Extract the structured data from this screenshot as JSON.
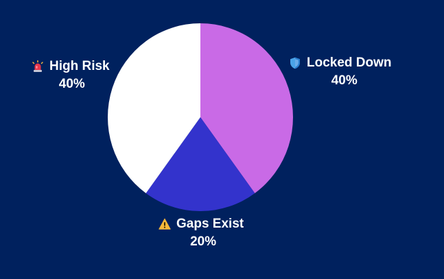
{
  "chart_data": {
    "type": "pie",
    "slices": [
      {
        "label": "Locked Down",
        "value": 40,
        "display": "40%",
        "color": "#c96ae6",
        "icon": "shield-icon"
      },
      {
        "label": "Gaps Exist",
        "value": 20,
        "display": "20%",
        "color": "#3333cc",
        "icon": "warning-icon"
      },
      {
        "label": "High Risk",
        "value": 40,
        "display": "40%",
        "color": "#ffffff",
        "icon": "siren-icon"
      }
    ],
    "start_angle": "12 o'clock",
    "direction": "clockwise"
  },
  "colors": {
    "background": "#00215e",
    "text": "#ffffff"
  }
}
